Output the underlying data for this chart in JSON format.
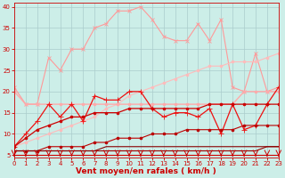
{
  "x": [
    0,
    1,
    2,
    3,
    4,
    5,
    6,
    7,
    8,
    9,
    10,
    11,
    12,
    13,
    14,
    15,
    16,
    17,
    18,
    19,
    20,
    21,
    22,
    23
  ],
  "series": [
    {
      "name": "light_pink_wavy",
      "color": "#ff9999",
      "linewidth": 0.8,
      "marker": "x",
      "markersize": 3,
      "linestyle": "-",
      "y": [
        21,
        17,
        17,
        28,
        25,
        30,
        30,
        35,
        36,
        39,
        39,
        40,
        37,
        33,
        32,
        32,
        36,
        32,
        37,
        21,
        20,
        29,
        20,
        21
      ]
    },
    {
      "name": "light_pink_diagonal",
      "color": "#ffbbbb",
      "linewidth": 0.8,
      "marker": "o",
      "markersize": 2,
      "linestyle": "-",
      "y": [
        7,
        8,
        9,
        10,
        11,
        12,
        13,
        14,
        16,
        17,
        19,
        20,
        21,
        22,
        23,
        24,
        25,
        26,
        26,
        27,
        27,
        27,
        28,
        29
      ]
    },
    {
      "name": "medium_pink_flat",
      "color": "#ffaaaa",
      "linewidth": 1.0,
      "marker": "o",
      "markersize": 2,
      "linestyle": "-",
      "y": [
        20,
        17,
        17,
        17,
        17,
        17,
        17,
        17,
        17,
        17,
        17,
        17,
        17,
        17,
        17,
        17,
        17,
        17,
        17,
        17,
        20,
        20,
        20,
        20
      ]
    },
    {
      "name": "red_zigzag_markers",
      "color": "#ee1111",
      "linewidth": 0.9,
      "marker": "+",
      "markersize": 4,
      "linestyle": "-",
      "y": [
        7,
        10,
        13,
        17,
        14,
        17,
        13,
        19,
        18,
        18,
        20,
        20,
        16,
        14,
        15,
        15,
        14,
        16,
        10,
        17,
        11,
        12,
        17,
        21
      ]
    },
    {
      "name": "dark_red_rising",
      "color": "#cc0000",
      "linewidth": 0.9,
      "marker": "o",
      "markersize": 2,
      "linestyle": "-",
      "y": [
        7,
        9,
        11,
        12,
        13,
        14,
        14,
        15,
        15,
        15,
        16,
        16,
        16,
        16,
        16,
        16,
        16,
        17,
        17,
        17,
        17,
        17,
        17,
        17
      ]
    },
    {
      "name": "dark_red_flat1",
      "color": "#bb0000",
      "linewidth": 0.8,
      "marker": "o",
      "markersize": 2,
      "linestyle": "-",
      "y": [
        6,
        6,
        6,
        7,
        7,
        7,
        7,
        8,
        8,
        9,
        9,
        9,
        10,
        10,
        10,
        11,
        11,
        11,
        11,
        11,
        12,
        12,
        12,
        12
      ]
    },
    {
      "name": "dark_red_flat2",
      "color": "#990000",
      "linewidth": 0.8,
      "marker": null,
      "markersize": 0,
      "linestyle": "-",
      "y": [
        6,
        6,
        6,
        6,
        6,
        6,
        6,
        6,
        6,
        6,
        6,
        6,
        6,
        6,
        6,
        6,
        6,
        6,
        6,
        6,
        6,
        6,
        7,
        7
      ]
    },
    {
      "name": "dark_red_flat3",
      "color": "#880000",
      "linewidth": 0.8,
      "marker": null,
      "markersize": 0,
      "linestyle": "-",
      "y": [
        6,
        6,
        6,
        6,
        6,
        6,
        6,
        6,
        7,
        7,
        7,
        7,
        7,
        7,
        7,
        7,
        7,
        7,
        7,
        7,
        7,
        7,
        7,
        7
      ]
    }
  ],
  "xlabel": "Vent moyen/en rafales ( km/h )",
  "xlim": [
    0,
    23
  ],
  "ylim": [
    4.5,
    41
  ],
  "yticks": [
    5,
    10,
    15,
    20,
    25,
    30,
    35,
    40
  ],
  "xticks": [
    0,
    1,
    2,
    3,
    4,
    5,
    6,
    7,
    8,
    9,
    10,
    11,
    12,
    13,
    14,
    15,
    16,
    17,
    18,
    19,
    20,
    21,
    22,
    23
  ],
  "bg_color": "#cceee8",
  "grid_color": "#aacccc",
  "tick_color": "#cc0000",
  "label_color": "#cc0000",
  "axis_fontsize": 6.5
}
